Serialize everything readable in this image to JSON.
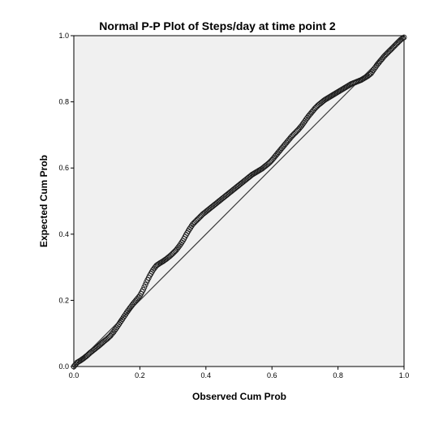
{
  "chart_data": {
    "type": "scatter",
    "title": "Normal P-P Plot of Steps/day at time point 2",
    "xlabel": "Observed Cum Prob",
    "ylabel": "Expected Cum Prob",
    "xlim": [
      0,
      1
    ],
    "ylim": [
      0,
      1
    ],
    "x_ticks": [
      "0.0",
      "0.2",
      "0.4",
      "0.6",
      "0.8",
      "1.0"
    ],
    "y_ticks": [
      "0.0",
      "0.2",
      "0.4",
      "0.6",
      "0.8",
      "1.0"
    ],
    "grid": false,
    "legend": "none",
    "reference_line": [
      [
        0,
        0
      ],
      [
        1,
        1
      ]
    ],
    "series": [
      {
        "x": [
          0.0,
          0.01,
          0.02,
          0.03,
          0.04,
          0.05,
          0.06,
          0.07,
          0.08,
          0.09,
          0.1,
          0.11,
          0.12,
          0.13,
          0.14,
          0.15,
          0.16,
          0.17,
          0.18,
          0.19,
          0.2,
          0.21,
          0.22,
          0.23,
          0.24,
          0.25,
          0.26,
          0.27,
          0.28,
          0.29,
          0.3,
          0.31,
          0.32,
          0.33,
          0.34,
          0.35,
          0.36,
          0.37,
          0.38,
          0.39,
          0.4,
          0.41,
          0.42,
          0.43,
          0.44,
          0.45,
          0.46,
          0.47,
          0.48,
          0.49,
          0.5,
          0.51,
          0.52,
          0.53,
          0.54,
          0.55,
          0.56,
          0.57,
          0.58,
          0.59,
          0.6,
          0.61,
          0.62,
          0.63,
          0.64,
          0.65,
          0.66,
          0.67,
          0.68,
          0.69,
          0.7,
          0.71,
          0.72,
          0.73,
          0.74,
          0.75,
          0.76,
          0.77,
          0.78,
          0.79,
          0.8,
          0.81,
          0.82,
          0.83,
          0.84,
          0.85,
          0.86,
          0.87,
          0.88,
          0.89,
          0.9,
          0.91,
          0.92,
          0.93,
          0.94,
          0.95,
          0.96,
          0.97,
          0.98,
          0.99,
          1.0
        ],
        "y": [
          0.0,
          0.012,
          0.018,
          0.025,
          0.033,
          0.042,
          0.05,
          0.058,
          0.066,
          0.075,
          0.083,
          0.092,
          0.104,
          0.118,
          0.133,
          0.148,
          0.163,
          0.177,
          0.19,
          0.202,
          0.214,
          0.232,
          0.255,
          0.275,
          0.292,
          0.305,
          0.312,
          0.318,
          0.325,
          0.333,
          0.342,
          0.352,
          0.365,
          0.38,
          0.398,
          0.415,
          0.43,
          0.44,
          0.45,
          0.46,
          0.468,
          0.476,
          0.484,
          0.492,
          0.5,
          0.508,
          0.516,
          0.524,
          0.532,
          0.54,
          0.548,
          0.556,
          0.564,
          0.572,
          0.58,
          0.586,
          0.592,
          0.598,
          0.606,
          0.614,
          0.624,
          0.636,
          0.648,
          0.66,
          0.672,
          0.684,
          0.696,
          0.706,
          0.716,
          0.728,
          0.742,
          0.756,
          0.768,
          0.78,
          0.79,
          0.798,
          0.806,
          0.812,
          0.818,
          0.824,
          0.83,
          0.836,
          0.842,
          0.848,
          0.854,
          0.858,
          0.862,
          0.866,
          0.872,
          0.878,
          0.886,
          0.9,
          0.914,
          0.926,
          0.938,
          0.948,
          0.958,
          0.968,
          0.978,
          0.988,
          0.995
        ]
      }
    ]
  },
  "colors": {
    "plot_background": "#f0f0f0",
    "marker_stroke": "#1a1a1a",
    "reference_line": "#3c3c3c",
    "axis": "#000000"
  }
}
